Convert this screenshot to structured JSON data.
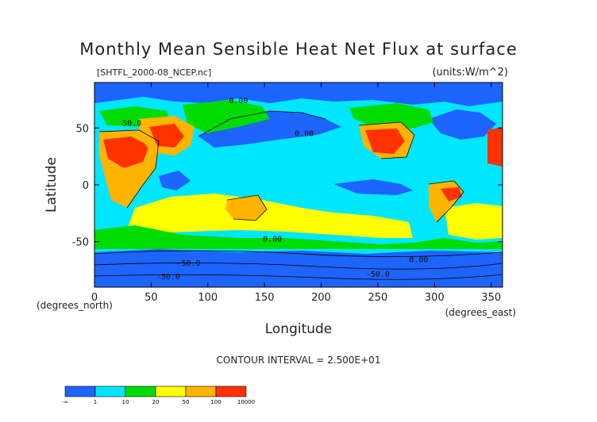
{
  "chart_data": {
    "type": "heatmap",
    "title": "Monthly Mean Sensible Heat Net Flux at surface",
    "file_label": "[SHTFL_2000-08_NCEP.nc]",
    "units_label": "(units:W/m^2)",
    "xlabel": "Longitude",
    "ylabel": "Latitude",
    "x_unit_label": "(degrees_east)",
    "y_unit_label": "(degrees_north)",
    "xlim": [
      0,
      360
    ],
    "ylim": [
      -90,
      90
    ],
    "x_ticks": [
      "0",
      "50",
      "100",
      "150",
      "200",
      "250",
      "300",
      "350"
    ],
    "x_tick_values": [
      0,
      50,
      100,
      150,
      200,
      250,
      300,
      350
    ],
    "y_ticks": [
      "50",
      "0",
      "-50"
    ],
    "y_tick_values": [
      50,
      0,
      -50
    ],
    "contour_interval_label": "CONTOUR INTERVAL = 2.500E+01",
    "contour_labels": [
      {
        "text": "0.00",
        "lon": 185,
        "lat": 43
      },
      {
        "text": "0.00",
        "lon": 157,
        "lat": -50
      },
      {
        "text": "50.0",
        "lon": 33,
        "lat": 52
      },
      {
        "text": "-50.0",
        "lon": 83,
        "lat": -71
      },
      {
        "text": "-50.0",
        "lon": 65,
        "lat": -83
      },
      {
        "text": "-50.0",
        "lon": 250,
        "lat": -81
      },
      {
        "text": "0.00",
        "lon": 286,
        "lat": -68
      },
      {
        "text": "0.00",
        "lon": 127,
        "lat": 72
      }
    ],
    "colorbar": {
      "colors": [
        "#1e64ff",
        "#00e6ff",
        "#00dc00",
        "#ffff00",
        "#ffb400",
        "#ff3200"
      ],
      "levels": [
        "-∞",
        "1",
        "10",
        "20",
        "50",
        "100",
        "10000"
      ]
    },
    "grid": false,
    "legend": "bottom-left colorbar"
  }
}
